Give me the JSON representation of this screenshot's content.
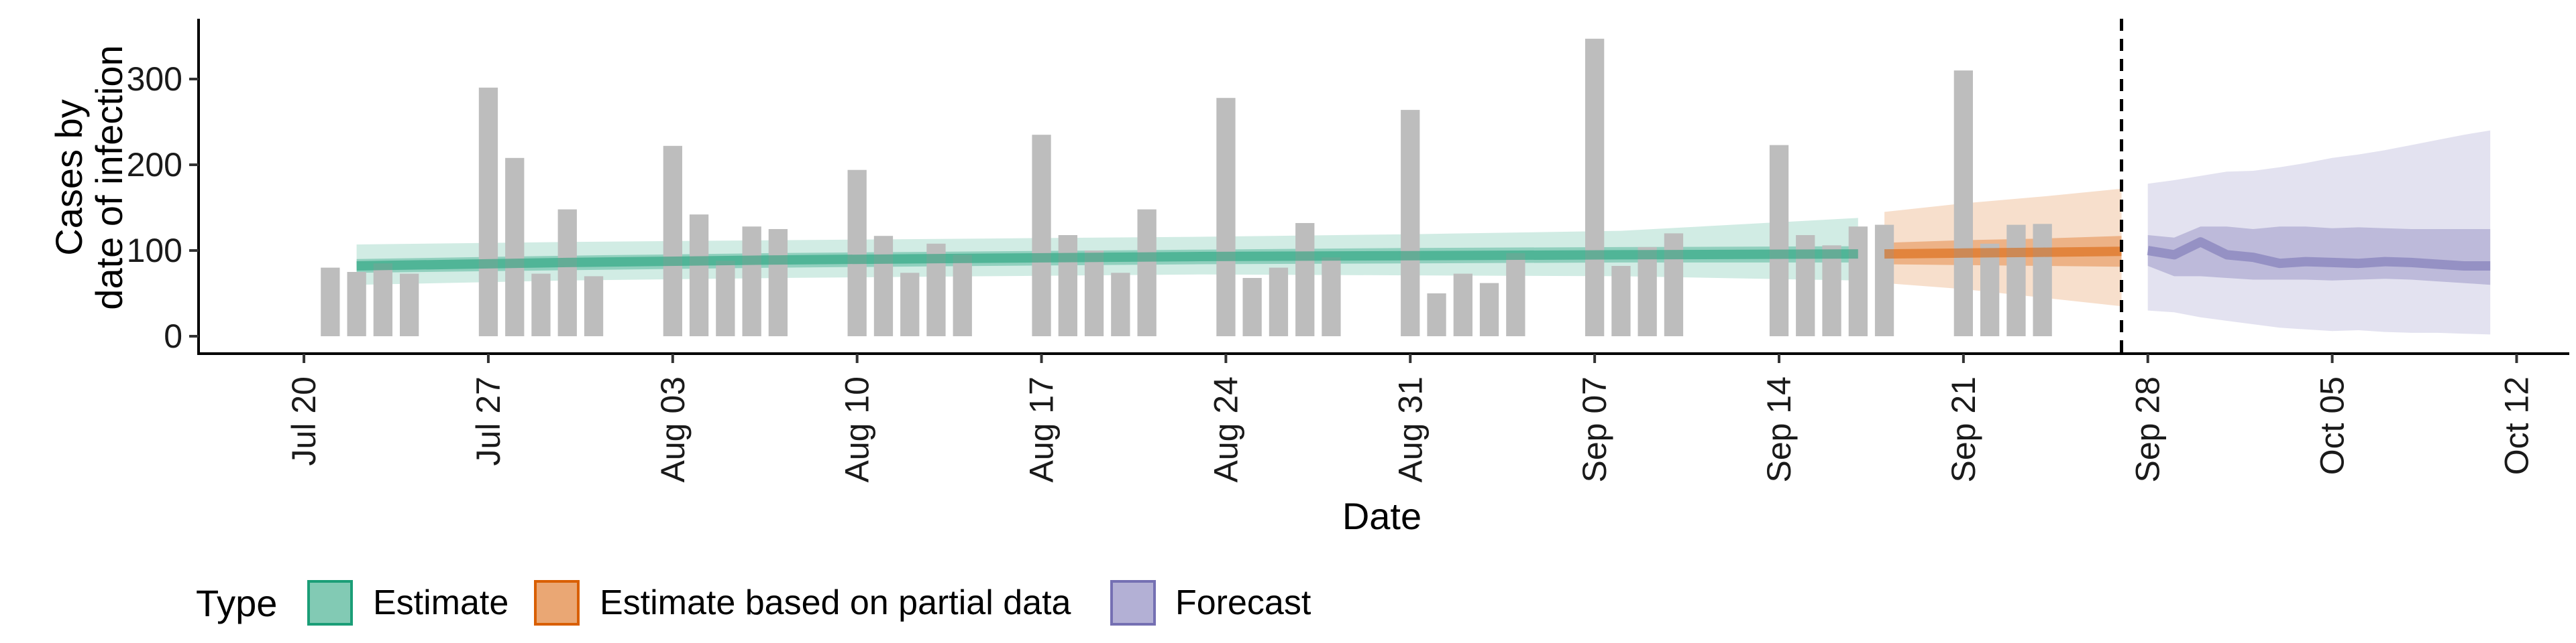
{
  "chart_data": {
    "type": "bar",
    "xlabel": "Date",
    "ylabel_lines": [
      "Cases by",
      "date of infection"
    ],
    "ylim": [
      0,
      365
    ],
    "y_ticks": [
      0,
      100,
      200,
      300
    ],
    "x_start": "2020-07-16",
    "x_end": "2020-10-14",
    "x_ticks": [
      {
        "date": "2020-07-20",
        "label": "Jul 20"
      },
      {
        "date": "2020-07-27",
        "label": "Jul 27"
      },
      {
        "date": "2020-08-03",
        "label": "Aug 03"
      },
      {
        "date": "2020-08-10",
        "label": "Aug 10"
      },
      {
        "date": "2020-08-17",
        "label": "Aug 17"
      },
      {
        "date": "2020-08-24",
        "label": "Aug 24"
      },
      {
        "date": "2020-08-31",
        "label": "Aug 31"
      },
      {
        "date": "2020-09-07",
        "label": "Sep 07"
      },
      {
        "date": "2020-09-14",
        "label": "Sep 14"
      },
      {
        "date": "2020-09-21",
        "label": "Sep 21"
      },
      {
        "date": "2020-09-28",
        "label": "Sep 28"
      },
      {
        "date": "2020-10-05",
        "label": "Oct 05"
      },
      {
        "date": "2020-10-12",
        "label": "Oct 12"
      }
    ],
    "bars": {
      "color": "#bdbdbd",
      "start_date": "2020-07-21",
      "values": [
        80,
        75,
        85,
        73,
        null,
        null,
        290,
        208,
        73,
        148,
        70,
        null,
        null,
        222,
        142,
        88,
        128,
        125,
        null,
        null,
        194,
        117,
        74,
        108,
        95,
        null,
        null,
        235,
        118,
        100,
        74,
        148,
        null,
        null,
        278,
        68,
        80,
        132,
        92,
        null,
        null,
        264,
        50,
        73,
        62,
        97,
        null,
        null,
        347,
        82,
        104,
        120,
        null,
        null,
        null,
        223,
        118,
        106,
        128,
        130,
        null,
        null,
        310,
        108,
        130,
        131
      ]
    },
    "forecast_date_line": "2020-09-27",
    "series": [
      {
        "name": "Estimate",
        "color": "#1b9e77",
        "dates": [
          "2020-07-22",
          "2020-07-30",
          "2020-08-07",
          "2020-08-15",
          "2020-08-23",
          "2020-08-31",
          "2020-09-08",
          "2020-09-17"
        ],
        "median": [
          82,
          86,
          89,
          91,
          93,
          94,
          95,
          96
        ],
        "ci50_lower": [
          74,
          77,
          80,
          82,
          84,
          85,
          86,
          86
        ],
        "ci50_upper": [
          90,
          94,
          97,
          99,
          101,
          103,
          104,
          105
        ],
        "ci90_lower": [
          60,
          65,
          68,
          70,
          72,
          71,
          70,
          65
        ],
        "ci90_upper": [
          107,
          110,
          112,
          114,
          116,
          119,
          123,
          138
        ]
      },
      {
        "name": "Estimate based on partial data",
        "color": "#d95f02",
        "dates": [
          "2020-09-18",
          "2020-09-21",
          "2020-09-24",
          "2020-09-27"
        ],
        "median": [
          96,
          97,
          98,
          99
        ],
        "ci50_lower": [
          84,
          83,
          82,
          81
        ],
        "ci50_upper": [
          109,
          112,
          114,
          117
        ],
        "ci90_lower": [
          62,
          55,
          45,
          35
        ],
        "ci90_upper": [
          145,
          155,
          163,
          172
        ]
      },
      {
        "name": "Forecast",
        "color": "#7570b3",
        "dates": [
          "2020-09-28",
          "2020-09-29",
          "2020-09-30",
          "2020-10-01",
          "2020-10-02",
          "2020-10-03",
          "2020-10-04",
          "2020-10-05",
          "2020-10-06",
          "2020-10-07",
          "2020-10-08",
          "2020-10-09",
          "2020-10-10",
          "2020-10-11"
        ],
        "median": [
          100,
          95,
          110,
          95,
          92,
          85,
          87,
          86,
          85,
          87,
          86,
          84,
          82,
          82
        ],
        "ci50_lower": [
          82,
          70,
          70,
          68,
          66,
          66,
          66,
          65,
          66,
          67,
          66,
          64,
          62,
          60
        ],
        "ci50_upper": [
          118,
          115,
          128,
          128,
          125,
          128,
          128,
          126,
          127,
          126,
          125,
          125,
          125,
          125
        ],
        "ci90_lower": [
          30,
          28,
          22,
          18,
          14,
          10,
          8,
          6,
          7,
          5,
          4,
          4,
          3,
          2
        ],
        "ci90_upper": [
          178,
          182,
          187,
          192,
          193,
          197,
          202,
          208,
          212,
          217,
          223,
          229,
          235,
          240
        ]
      }
    ],
    "legend": {
      "title": "Type",
      "position": "bottom-left",
      "items": [
        "Estimate",
        "Estimate based on partial data",
        "Forecast"
      ]
    },
    "grid": false
  }
}
